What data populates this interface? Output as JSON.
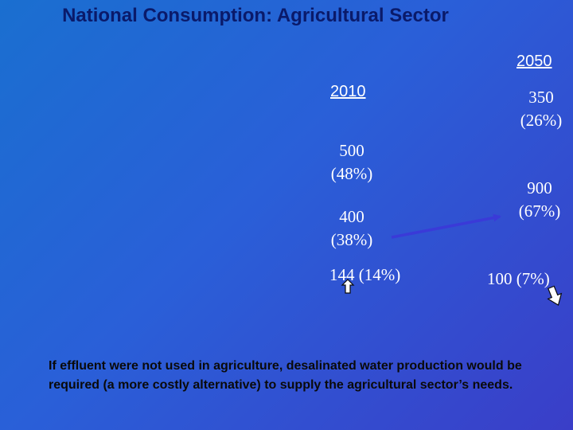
{
  "title": "National Consumption: Agricultural Sector",
  "year_2010": {
    "label": "2010",
    "values": [
      {
        "amount": "500",
        "share": "(48%)"
      },
      {
        "amount": "400",
        "share": "(38%)"
      },
      {
        "text": "144 (14%)"
      }
    ]
  },
  "year_2050": {
    "label": "2050",
    "values": [
      {
        "amount": "350",
        "share": "(26%)"
      },
      {
        "amount": "900",
        "share": "(67%)"
      },
      {
        "text": "100 (7%)"
      }
    ]
  },
  "footnote": "If effluent were not used in agriculture, desalinated water production would be required (a more costly alternative) to supply the agricultural sector’s needs.",
  "colors": {
    "title": "#0a1a6a",
    "arrow": "#3a3ad8",
    "text": "#ffffff"
  },
  "icons": [
    "up-arrow-icon",
    "down-right-arrow-icon"
  ]
}
